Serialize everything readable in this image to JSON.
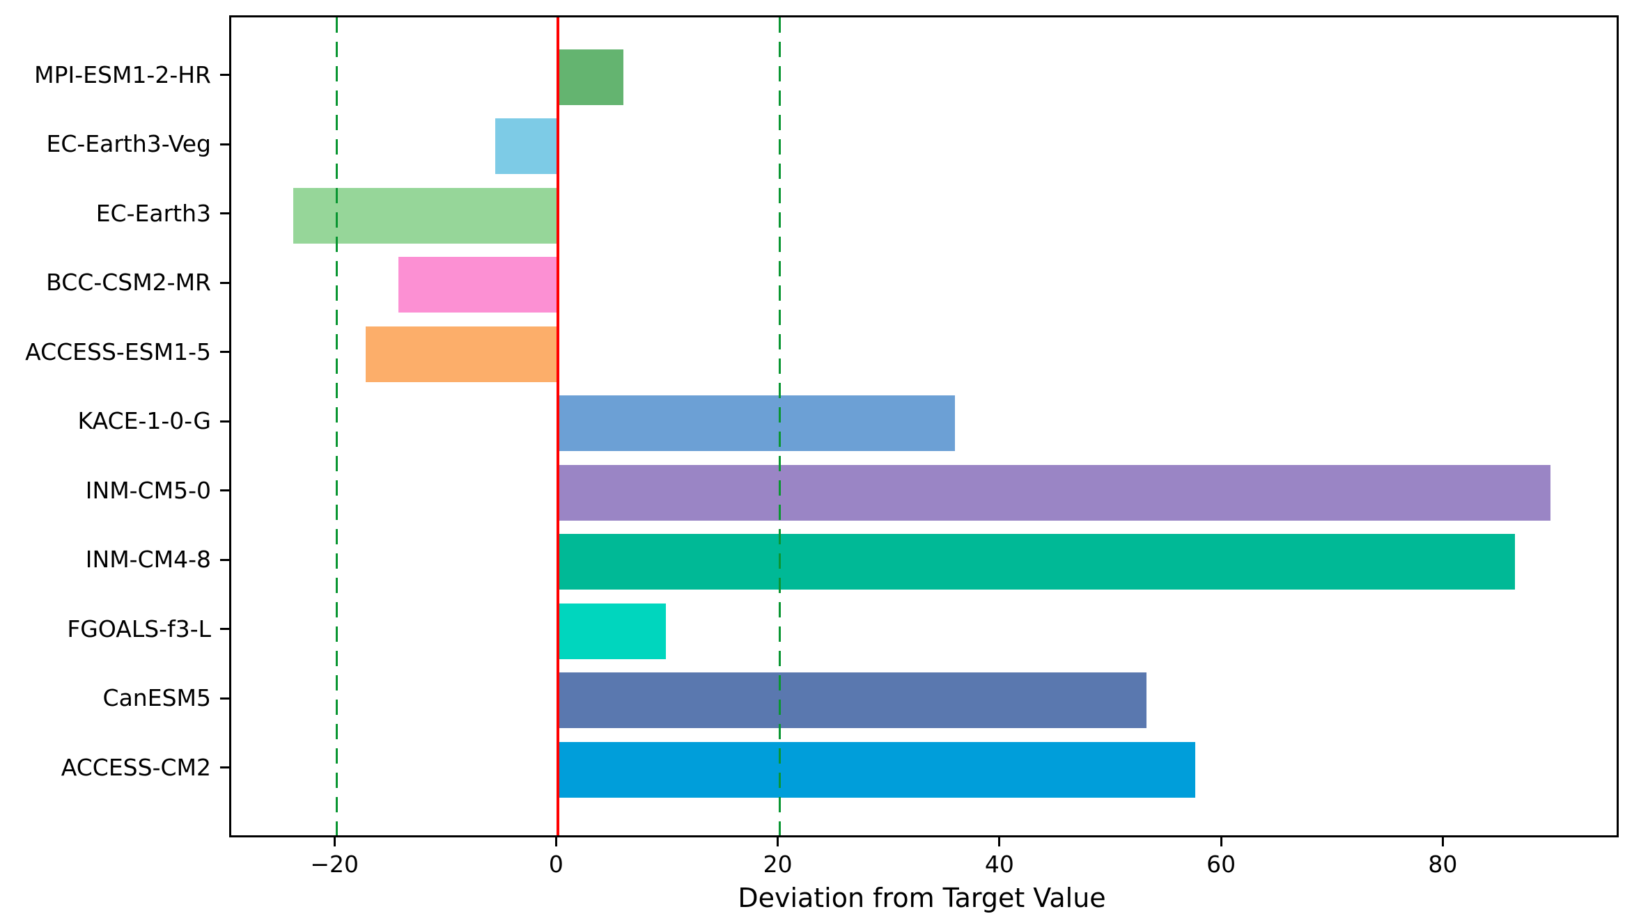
{
  "figure": {
    "background": "#ffffff",
    "plot_border_color": "#000000"
  },
  "chart_data": {
    "type": "bar",
    "orientation": "horizontal",
    "title": "",
    "xlabel": "Deviation from Target Value",
    "ylabel": "",
    "grid": false,
    "legend": false,
    "categories": [
      "MPI-ESM1-2-HR",
      "EC-Earth3-Veg",
      "EC-Earth3",
      "BCC-CSM2-MR",
      "ACCESS-ESM1-5",
      "KACE-1-0-G",
      "INM-CM5-0",
      "INM-CM4-8",
      "FGOALS-f3-L",
      "CanESM5",
      "ACCESS-CM2"
    ],
    "values": [
      5.9,
      -5.7,
      -23.9,
      -14.4,
      -17.4,
      35.8,
      89.5,
      86.3,
      9.7,
      53.1,
      57.5
    ],
    "bar_colors": [
      "#64b470",
      "#7dcbe6",
      "#96d699",
      "#fc90d3",
      "#fcae6a",
      "#6ca0d5",
      "#9a85c5",
      "#00b996",
      "#00d6be",
      "#5a78af",
      "#009eda"
    ],
    "xlim": [
      -29.5,
      95.5
    ],
    "x_ticks": [
      {
        "value": -20,
        "label": "−20"
      },
      {
        "value": 0,
        "label": "0"
      },
      {
        "value": 20,
        "label": "20"
      },
      {
        "value": 40,
        "label": "40"
      },
      {
        "value": 60,
        "label": "60"
      },
      {
        "value": 80,
        "label": "80"
      }
    ],
    "reference_lines": [
      {
        "value": 0,
        "color": "#ff0000",
        "style": "solid",
        "name": "target-zero-line"
      },
      {
        "value": -20,
        "color": "#0a9632",
        "style": "dashed",
        "name": "lower-threshold-line"
      },
      {
        "value": 20,
        "color": "#0a9632",
        "style": "dashed",
        "name": "upper-threshold-line"
      }
    ]
  }
}
